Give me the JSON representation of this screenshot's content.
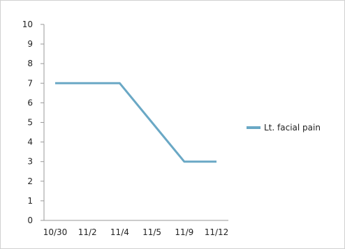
{
  "chart_data": {
    "type": "line",
    "categories": [
      "10/30",
      "11/2",
      "11/4",
      "11/5",
      "11/9",
      "11/12"
    ],
    "series": [
      {
        "name": "Lt. facial pain",
        "values": [
          7,
          7,
          7,
          5,
          3,
          3
        ],
        "color": "#6aa8c5"
      }
    ],
    "ylim": [
      0,
      10
    ],
    "yticks": [
      "0",
      "1",
      "2",
      "3",
      "4",
      "5",
      "6",
      "7",
      "8",
      "9",
      "10"
    ],
    "grid": false,
    "legend": "right"
  }
}
